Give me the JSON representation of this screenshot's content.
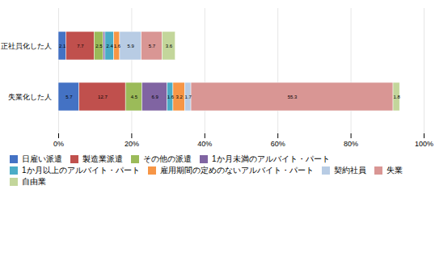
{
  "chart_data": {
    "type": "bar",
    "orientation": "horizontal",
    "stacked": true,
    "categories": [
      "失業化した人",
      "正社員化した人"
    ],
    "series": [
      {
        "name": "日雇い派遣",
        "color": "#4472C4",
        "values": [
          5.7,
          2.1
        ]
      },
      {
        "name": "製造業派遣",
        "color": "#C0504D",
        "values": [
          12.7,
          7.7
        ]
      },
      {
        "name": "その他の派遣",
        "color": "#9BBB59",
        "values": [
          4.5,
          2.5
        ]
      },
      {
        "name": "1か月未満のアルバイト・パート",
        "color": "#8064A2",
        "values": [
          6.9,
          0.5
        ],
        "value_labels": [
          "6.9",
          null
        ]
      },
      {
        "name": "1か月以上のアルバイト・パート",
        "color": "#4BACC6",
        "values": [
          1.6,
          2.4
        ]
      },
      {
        "name": "雇用期間の定めのないアルバイト・パート",
        "color": "#F79646",
        "values": [
          3.2,
          1.6
        ]
      },
      {
        "name": "契約社員",
        "color": "#B8CCE4",
        "values": [
          1.7,
          5.9
        ]
      },
      {
        "name": "失業",
        "color": "#D99694",
        "values": [
          55.3,
          5.7
        ]
      },
      {
        "name": "自由業",
        "color": "#C3D69B",
        "values": [
          1.8,
          3.6
        ]
      }
    ],
    "xlim": [
      0,
      100
    ],
    "xticks": [
      {
        "value": 0,
        "label": "0%"
      },
      {
        "value": 20,
        "label": "20%"
      },
      {
        "value": 40,
        "label": "40%"
      },
      {
        "value": 60,
        "label": "60%"
      },
      {
        "value": 80,
        "label": "80%"
      },
      {
        "value": 100,
        "label": "100%"
      }
    ],
    "grid": true,
    "data_labels": true,
    "legend": "bottom"
  }
}
